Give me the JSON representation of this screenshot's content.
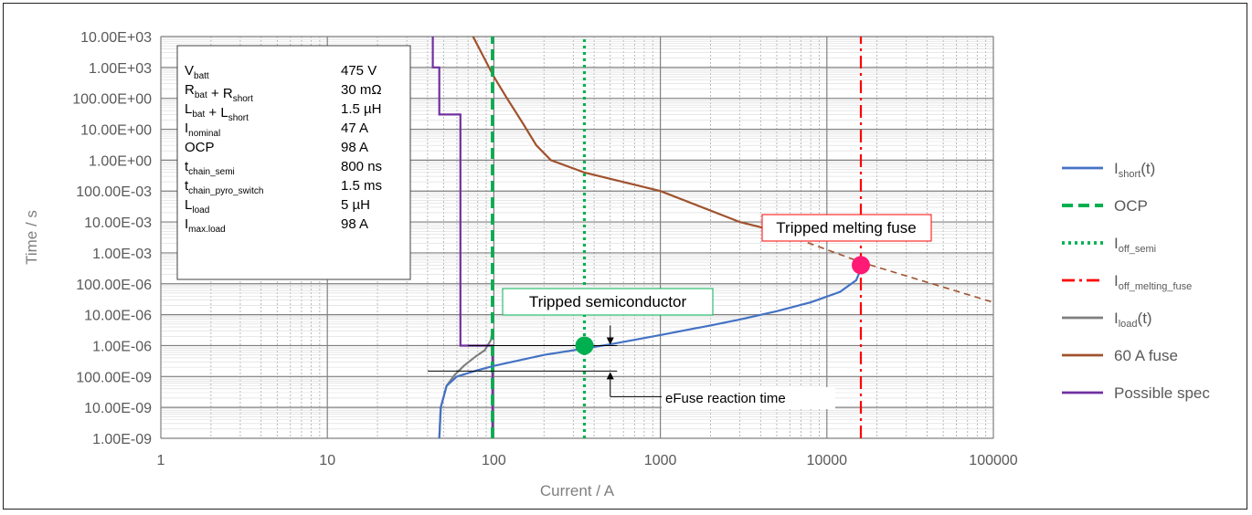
{
  "chart_data": {
    "type": "line",
    "xscale": "log",
    "yscale": "log",
    "xlim": [
      1,
      100000
    ],
    "ylim": [
      1e-09,
      10000
    ],
    "xlabel": "Current / A",
    "ylabel": "Time / s",
    "grid": true,
    "legend_position": "right",
    "x_tick_labels": [
      "1",
      "10",
      "100",
      "1000",
      "10000",
      "100000"
    ],
    "y_tick_labels": [
      "1.00E-09",
      "10.00E-09",
      "100.00E-09",
      "1.00E-06",
      "10.00E-06",
      "100.00E-06",
      "1.00E-03",
      "10.00E-03",
      "100.00E-03",
      "1.00E+00",
      "10.00E+00",
      "100.00E+00",
      "1.00E+03",
      "10.00E+03"
    ],
    "parameters": [
      {
        "name": "V",
        "sub": "batt",
        "value": "475 V"
      },
      {
        "name": "R",
        "sub": "bat",
        "name2": " + R",
        "sub2": "short",
        "value": "30 mΩ"
      },
      {
        "name": "L",
        "sub": "bat",
        "name2": " + L",
        "sub2": "short",
        "value": "1.5 µH"
      },
      {
        "name": "I",
        "sub": "nominal",
        "value": "47 A"
      },
      {
        "name": "OCP",
        "sub": "",
        "value": "98 A"
      },
      {
        "name": "t",
        "sub": "chain_semi",
        "value": "800 ns"
      },
      {
        "name": "t",
        "sub": "chain_pyro_switch",
        "value": "1.5 ms"
      },
      {
        "name": "L",
        "sub": "load",
        "value": "5 µH"
      },
      {
        "name": "I",
        "sub": "max.load",
        "value": "98 A"
      }
    ],
    "series": [
      {
        "name": "I",
        "name_sub": "short",
        "name_suffix": "(t)",
        "color": "#4472c4",
        "style": "solid",
        "points": [
          [
            47,
            1e-09
          ],
          [
            48,
            1e-08
          ],
          [
            52,
            5e-08
          ],
          [
            60,
            1e-07
          ],
          [
            80,
            1.6e-07
          ],
          [
            100,
            2.2e-07
          ],
          [
            200,
            5e-07
          ],
          [
            350,
            8e-07
          ],
          [
            500,
            1.1e-06
          ],
          [
            1000,
            2.2e-06
          ],
          [
            2000,
            4.5e-06
          ],
          [
            3000,
            7e-06
          ],
          [
            5000,
            1.3e-05
          ],
          [
            8000,
            2.5e-05
          ],
          [
            12000,
            5.5e-05
          ],
          [
            15000,
            0.00013
          ],
          [
            16000,
            0.0003
          ]
        ]
      },
      {
        "name": "OCP",
        "color": "#00b050",
        "style": "dashed",
        "points": [
          [
            98,
            1e-09
          ],
          [
            98,
            10000
          ]
        ]
      },
      {
        "name": "I",
        "name_sub": "off_semi",
        "color": "#00b050",
        "style": "dotted",
        "points": [
          [
            350,
            1e-09
          ],
          [
            350,
            10000
          ]
        ]
      },
      {
        "name": "I",
        "name_sub": "off_melting_fuse",
        "color": "#ff0000",
        "style": "dashdot",
        "points": [
          [
            16000,
            1e-09
          ],
          [
            16000,
            10000
          ]
        ]
      },
      {
        "name": "I",
        "name_sub": "load",
        "name_suffix": "(t)",
        "color": "#7f7f7f",
        "style": "solid",
        "points": [
          [
            47,
            1e-09
          ],
          [
            48,
            1e-08
          ],
          [
            52,
            5e-08
          ],
          [
            58,
            1.1e-07
          ],
          [
            66,
            2.2e-07
          ],
          [
            78,
            4.5e-07
          ],
          [
            88,
            7e-07
          ],
          [
            96,
            1.5e-06
          ],
          [
            98,
            3e-06
          ]
        ]
      },
      {
        "name": "60 A fuse",
        "color": "#a0522d",
        "style": "solid",
        "points": [
          [
            75,
            10000
          ],
          [
            100,
            500
          ],
          [
            120,
            100
          ],
          [
            150,
            15
          ],
          [
            180,
            3
          ],
          [
            220,
            1
          ],
          [
            350,
            0.4
          ],
          [
            1000,
            0.1
          ],
          [
            3000,
            0.01
          ],
          [
            5000,
            0.005
          ]
        ],
        "extrapolated": [
          [
            5000,
            0.005
          ],
          [
            16000,
            0.0005
          ],
          [
            100000,
            2.5e-05
          ]
        ]
      },
      {
        "name": "Possible spec",
        "color": "#7030a0",
        "style": "solid",
        "points": [
          [
            43,
            10000
          ],
          [
            43,
            1000
          ],
          [
            47,
            1000
          ],
          [
            47,
            30
          ],
          [
            63,
            30
          ],
          [
            63,
            1e-06
          ],
          [
            98,
            1e-06
          ],
          [
            98,
            1e-09
          ]
        ]
      }
    ],
    "markers": [
      {
        "x": 350,
        "y": 1e-06,
        "color": "#00b050"
      },
      {
        "x": 16000,
        "y": 0.0004,
        "color": "#ff1a75"
      }
    ],
    "annotations": [
      {
        "text": "Tripped semiconductor",
        "border": "#00b050"
      },
      {
        "text": "Tripped melting fuse",
        "border": "#ff0000"
      },
      {
        "text": "eFuse reaction time"
      }
    ]
  }
}
